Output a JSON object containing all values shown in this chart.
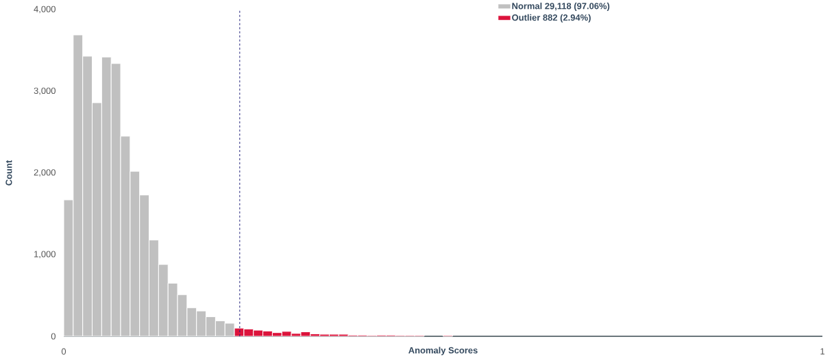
{
  "chart_data": {
    "type": "histogram",
    "xlabel": "Anomaly Scores",
    "ylabel": "Count",
    "bins": [
      0,
      0.0125,
      0.025,
      0.0375,
      0.05,
      0.0625,
      0.075,
      0.0875,
      0.1,
      0.1125,
      0.125,
      0.1375,
      0.15,
      0.1625,
      0.175,
      0.1875,
      0.2,
      0.2125,
      0.225,
      0.2375,
      0.25,
      0.2625,
      0.275,
      0.2875,
      0.3,
      0.3125,
      0.325,
      0.3375,
      0.35,
      0.3625,
      0.375,
      0.3875,
      0.4,
      0.4125,
      0.425,
      0.4375,
      0.45,
      0.4625,
      0.475,
      0.4875,
      0.5,
      0.5125
    ],
    "series": [
      {
        "name": "Normal 29,118 (97.06%)",
        "color": "#c0c0c0",
        "values": [
          1670,
          3690,
          3430,
          2860,
          3420,
          3340,
          2450,
          2020,
          1730,
          1180,
          880,
          650,
          510,
          350,
          310,
          240,
          190,
          160,
          null,
          null,
          null,
          null,
          null,
          null,
          null,
          null,
          null,
          null,
          null,
          null,
          null,
          null,
          null,
          null,
          null,
          null,
          null,
          null,
          null,
          null,
          null
        ]
      },
      {
        "name": "Outlier 882 (2.94%)",
        "color": "#dc143c",
        "values": [
          null,
          null,
          null,
          null,
          null,
          null,
          null,
          null,
          null,
          null,
          null,
          null,
          null,
          null,
          null,
          null,
          null,
          null,
          100,
          90,
          75,
          65,
          45,
          60,
          35,
          55,
          30,
          25,
          25,
          25,
          15,
          15,
          10,
          15,
          15,
          10,
          10,
          10,
          0,
          0,
          10
        ]
      }
    ],
    "xlim": [
      0,
      1
    ],
    "ylim": [
      0,
      4000
    ],
    "xticks": [
      0,
      1
    ],
    "yticks": [
      0,
      {
        "value": 1000,
        "label": "1,000"
      },
      {
        "value": 2000,
        "label": "2,000"
      },
      {
        "value": 3000,
        "label": "3,000"
      },
      {
        "value": 4000,
        "label": "4,000"
      }
    ],
    "ref_lines": [
      {
        "axis": "x",
        "value": 0.232,
        "color": "#1f1f7a",
        "line_style": "dashed"
      }
    ],
    "grid": false,
    "legend": "top"
  }
}
